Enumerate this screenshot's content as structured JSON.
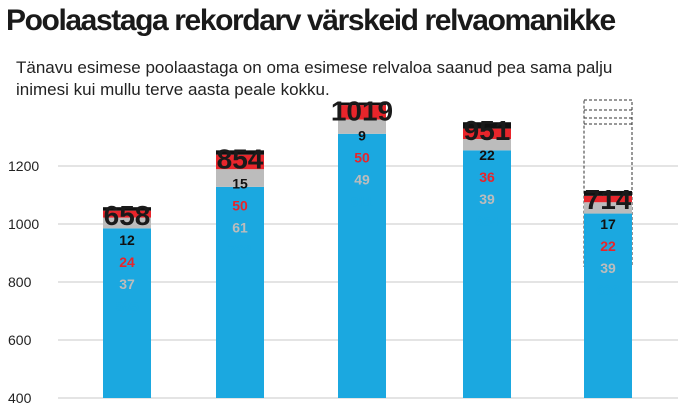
{
  "chart_data": {
    "type": "bar",
    "title": "Poolaastaga rekordarv värskeid relvaomanikke",
    "subtitle": "Tänavu esimese poolaastaga on oma esimese relvaloa saanud pea sama palju inimesi kui mullu terve aasta peale kokku.",
    "xlabel": "",
    "ylabel": "",
    "ylim": [
      400,
      1200
    ],
    "yticks": [
      400,
      600,
      800,
      1000,
      1200
    ],
    "grid": true,
    "categories": [
      "",
      "",
      "",
      "",
      ""
    ],
    "totals": [
      658,
      854,
      1019,
      951,
      714
    ],
    "series": [
      {
        "values": [
          585,
          728,
          911,
          854,
          636
        ],
        "color": "#1ba8e0"
      },
      {
        "values": [
          37,
          61,
          49,
          39,
          39
        ],
        "color": "#bcbcbc"
      },
      {
        "values": [
          24,
          50,
          50,
          36,
          22
        ],
        "color": "#e8252b"
      },
      {
        "values": [
          12,
          15,
          9,
          22,
          17
        ],
        "color": "#111111"
      }
    ],
    "last_bar_style": "dashed outline"
  }
}
